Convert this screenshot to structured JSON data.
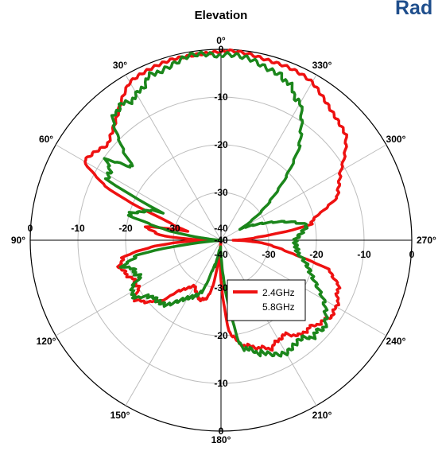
{
  "header": {
    "title_fragment": "Rad"
  },
  "chart_data": {
    "type": "polar-line",
    "title": "Elevation",
    "angle_ticks": [
      {
        "deg": 0,
        "label": "0°"
      },
      {
        "deg": 30,
        "label": "30°"
      },
      {
        "deg": 60,
        "label": "60°"
      },
      {
        "deg": 90,
        "label": "90°"
      },
      {
        "deg": 120,
        "label": "120°"
      },
      {
        "deg": 150,
        "label": "150°"
      },
      {
        "deg": 180,
        "label": "180°"
      },
      {
        "deg": 210,
        "label": "210°"
      },
      {
        "deg": 240,
        "label": "240°"
      },
      {
        "deg": 270,
        "label": "270°"
      },
      {
        "deg": 300,
        "label": "300°"
      },
      {
        "deg": 330,
        "label": "330°"
      }
    ],
    "radial_ticks": [
      {
        "value": 0,
        "label": "0"
      },
      {
        "value": -10,
        "label": "-10"
      },
      {
        "value": -20,
        "label": "-20"
      },
      {
        "value": -30,
        "label": "-30"
      },
      {
        "value": -40,
        "label": "-40"
      }
    ],
    "rlim": [
      -40,
      0
    ],
    "angle_direction": "counterclockwise from top",
    "grid": true,
    "legend_position": "center-right",
    "series": [
      {
        "name": "2.4GHz",
        "color": "#ee1111",
        "angles": [
          0,
          15,
          30,
          40,
          50,
          60,
          65,
          70,
          75,
          80,
          85,
          90,
          95,
          100,
          105,
          110,
          115,
          120,
          125,
          130,
          135,
          140,
          150,
          160,
          165,
          170,
          175,
          180,
          185,
          190,
          195,
          200,
          205,
          210,
          215,
          220,
          225,
          230,
          235,
          240,
          245,
          250,
          255,
          260,
          265,
          270,
          275,
          280,
          285,
          290,
          300,
          310,
          320,
          330,
          340,
          350,
          360
        ],
        "values": [
          -0.5,
          -0.6,
          -2,
          -6,
          -9,
          -7,
          -13,
          -27,
          -33,
          -24,
          -27,
          -38,
          -26,
          -19,
          -18,
          -19,
          -20,
          -20,
          -18,
          -20,
          -22,
          -26,
          -29,
          -27,
          -27,
          -30,
          -40,
          -32,
          -21,
          -18,
          -17,
          -16,
          -15,
          -16,
          -16,
          -14,
          -14,
          -13,
          -12,
          -12,
          -13,
          -14,
          -17,
          -26,
          -30,
          -37,
          -32,
          -21,
          -19,
          -14,
          -11,
          -6,
          -4,
          -2,
          -1,
          -0.6,
          -0.5
        ]
      },
      {
        "name": "5.8GHz",
        "color": "#1b861b",
        "angles": [
          0,
          10,
          20,
          25,
          30,
          35,
          40,
          45,
          50,
          55,
          60,
          62,
          65,
          70,
          75,
          80,
          85,
          90,
          95,
          100,
          105,
          110,
          115,
          120,
          125,
          130,
          140,
          150,
          160,
          165,
          170,
          175,
          180,
          185,
          190,
          195,
          200,
          210,
          220,
          225,
          230,
          240,
          250,
          260,
          270,
          280,
          290,
          300,
          310,
          320,
          330,
          335,
          340,
          350,
          360
        ],
        "values": [
          -1.5,
          -1,
          -2,
          -3,
          -5,
          -5,
          -5,
          -9,
          -16,
          -11,
          -13,
          -13,
          -26,
          -22,
          -20,
          -30,
          -39,
          -39.5,
          -40,
          -22,
          -19,
          -21,
          -21,
          -18,
          -19,
          -22,
          -22,
          -26,
          -29,
          -34,
          -37,
          -38,
          -37.5,
          -30,
          -18,
          -16,
          -15,
          -13,
          -13,
          -12,
          -12,
          -15,
          -20,
          -24,
          -24,
          -22,
          -29,
          -35,
          -26,
          -14,
          -7,
          -5,
          -3,
          -1.5,
          -1.5
        ]
      }
    ]
  }
}
